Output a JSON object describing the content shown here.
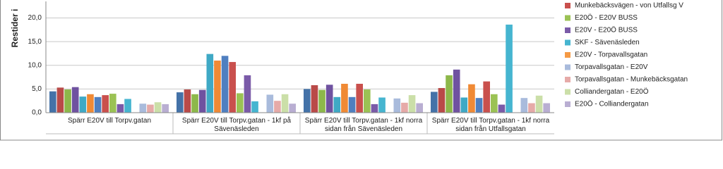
{
  "chart_data": {
    "type": "bar",
    "y_label": "Restider i",
    "categories": [
      "Spärr E20V till Torpv.gatan",
      "Spärr E20V till Torpv.gatan - 1kf på Sävenäsleden",
      "Spärr E20V till Torpv.gatan - 1kf norra sidan från Sävenäsleden",
      "Spärr E20V till Torpv.gatan - 1kf norra sidan från Utfallsgatan"
    ],
    "series": [
      {
        "color": "#4472a8",
        "values": [
          4.5,
          4.3,
          5.0,
          4.4
        ]
      },
      {
        "color": "#b94a48",
        "values": [
          5.3,
          4.9,
          5.8,
          5.2
        ]
      },
      {
        "color": "#8db84a",
        "values": [
          4.9,
          3.9,
          4.8,
          7.9
        ]
      },
      {
        "color": "#6f52a0",
        "values": [
          5.4,
          4.8,
          5.9,
          9.1
        ]
      },
      {
        "color": "#3fa9c5",
        "values": [
          3.4,
          12.4,
          3.3,
          3.2
        ]
      },
      {
        "color": "#f08a35",
        "values": [
          3.9,
          11.0,
          6.1,
          6.0
        ]
      },
      {
        "color": "#4f7fc0",
        "values": [
          3.3,
          12.0,
          3.3,
          3.1
        ]
      },
      {
        "name": "Munkebäcksvägen - von Utfallsg V",
        "color": "#c9504d",
        "values": [
          3.7,
          10.7,
          6.1,
          6.6
        ]
      },
      {
        "name": "E20Ö - E20V BUSS",
        "color": "#9bc254",
        "values": [
          4.0,
          4.1,
          4.9,
          3.9
        ]
      },
      {
        "name": "E20V - E20Ö BUSS",
        "color": "#7a5aa8",
        "values": [
          1.8,
          7.9,
          1.8,
          1.7
        ]
      },
      {
        "name": "SKF - Sävenäsleden",
        "color": "#46b5d0",
        "values": [
          2.9,
          2.4,
          3.2,
          18.6
        ]
      },
      {
        "name": "E20V - Torpavallsgatan",
        "color": "#f59a45",
        "values": [
          null,
          null,
          null,
          null
        ]
      },
      {
        "name": "Torpavallsgatan  - E20V",
        "color": "#a9bbdc",
        "values": [
          1.9,
          3.8,
          3.0,
          3.1
        ]
      },
      {
        "name": "Torpavallsgatan - Munkebäcksgatan",
        "color": "#e6aaa8",
        "values": [
          1.7,
          2.5,
          2.1,
          2.0
        ]
      },
      {
        "name": "Colliandergatan - E20Ö",
        "color": "#cbdfa8",
        "values": [
          2.2,
          3.9,
          3.7,
          3.6
        ]
      },
      {
        "name": "E20Ö - Colliandergatan",
        "color": "#b9aed2",
        "values": [
          1.8,
          1.9,
          2.0,
          2.0
        ]
      }
    ],
    "ylim": [
      0,
      23.5
    ],
    "yticks": [
      {
        "value": 0,
        "label": "0,0"
      },
      {
        "value": 5,
        "label": "5,0"
      },
      {
        "value": 10,
        "label": "10,0"
      },
      {
        "value": 15,
        "label": "15,0"
      },
      {
        "value": 20,
        "label": "20,0"
      }
    ],
    "grid": true
  }
}
